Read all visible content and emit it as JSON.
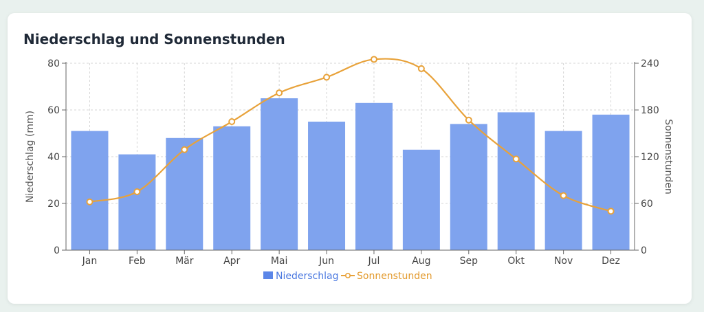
{
  "card": {
    "title": "Niederschlag und Sonnenstunden"
  },
  "chart_data": {
    "type": "bar+line",
    "title": "Niederschlag und Sonnenstunden",
    "categories": [
      "Jan",
      "Feb",
      "Mär",
      "Apr",
      "Mai",
      "Jun",
      "Jul",
      "Aug",
      "Sep",
      "Okt",
      "Nov",
      "Dez"
    ],
    "series": [
      {
        "name": "Niederschlag",
        "type": "bar",
        "axis": "left",
        "values": [
          51,
          41,
          48,
          53,
          65,
          55,
          63,
          43,
          54,
          59,
          51,
          58
        ],
        "color": "#7fa3ee"
      },
      {
        "name": "Sonnenstunden",
        "type": "line",
        "axis": "right",
        "values": [
          62,
          75,
          129,
          165,
          202,
          222,
          245,
          233,
          167,
          117,
          70,
          50
        ],
        "color": "#e8a23a"
      }
    ],
    "y_left": {
      "label": "Niederschlag (mm)",
      "range": [
        0,
        80
      ],
      "ticks": [
        0,
        20,
        40,
        60,
        80
      ]
    },
    "y_right": {
      "label": "Sonnenstunden",
      "range": [
        0,
        240
      ],
      "ticks": [
        0,
        60,
        120,
        180,
        240
      ]
    },
    "grid": true,
    "legend": "bottom-center"
  }
}
